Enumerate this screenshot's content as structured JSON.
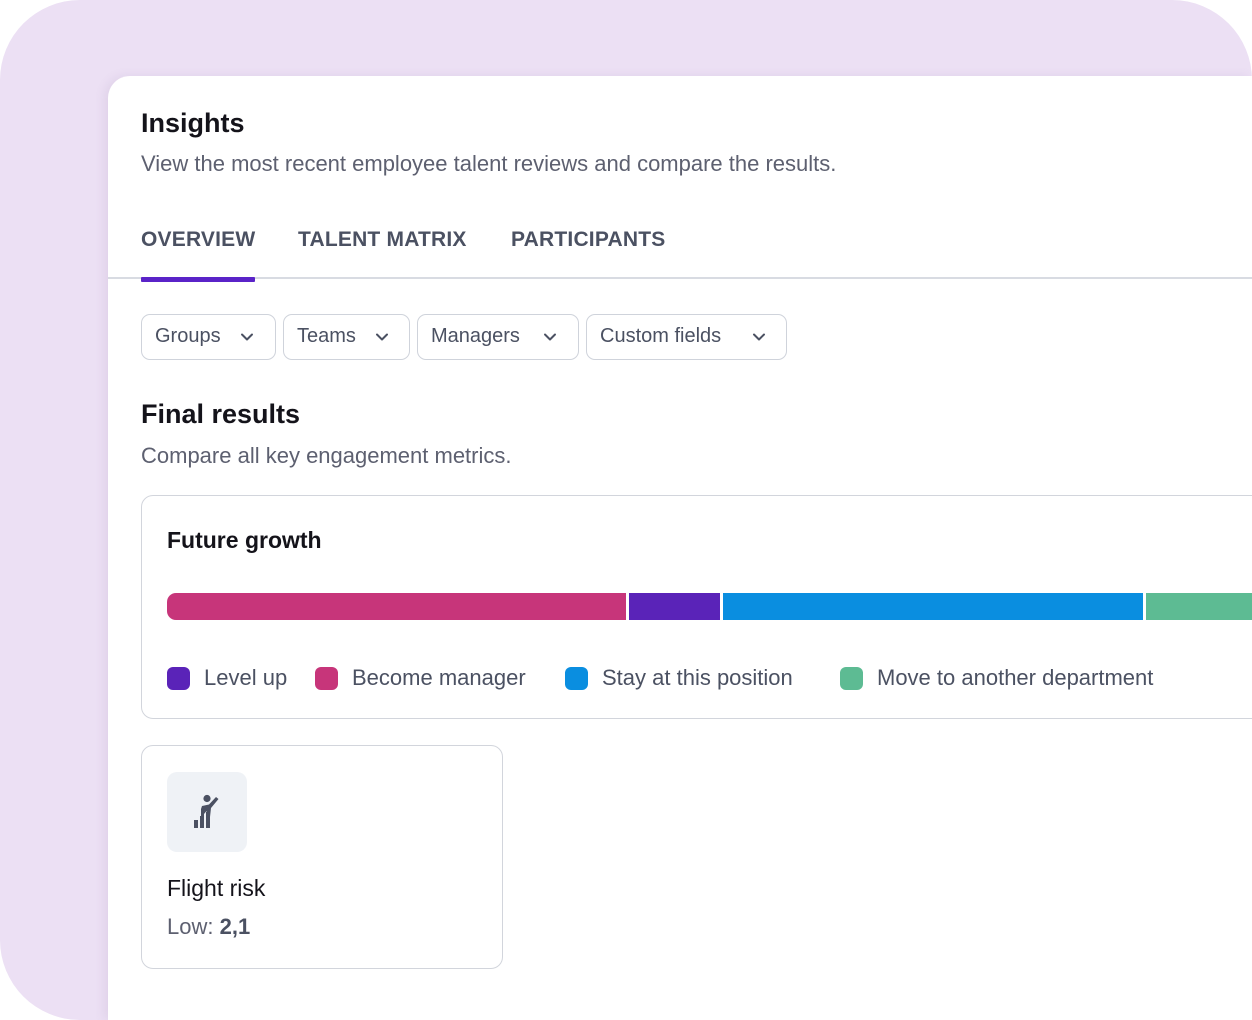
{
  "header": {
    "title": "Insights",
    "subtitle": "View the most recent employee talent reviews and compare the results."
  },
  "tabs": [
    {
      "label": "OVERVIEW",
      "active": true
    },
    {
      "label": "TALENT MATRIX",
      "active": false
    },
    {
      "label": "PARTICIPANTS",
      "active": false
    }
  ],
  "filters": [
    {
      "label": "Groups"
    },
    {
      "label": "Teams"
    },
    {
      "label": "Managers"
    },
    {
      "label": "Custom fields"
    }
  ],
  "final_results": {
    "title": "Final results",
    "subtitle": "Compare all key engagement metrics."
  },
  "future_growth": {
    "title": "Future growth",
    "colors": {
      "level_up": "#5a23b8",
      "become_manager": "#c7357a",
      "stay": "#0a8ee0",
      "move": "#5dbb93"
    },
    "legend": [
      {
        "key": "level_up",
        "label": "Level up"
      },
      {
        "key": "become_manager",
        "label": "Become manager"
      },
      {
        "key": "stay",
        "label": "Stay at this position"
      },
      {
        "key": "move",
        "label": "Move to another department"
      }
    ]
  },
  "chart_data": {
    "type": "bar",
    "stacked": true,
    "orientation": "horizontal",
    "title": "Future growth",
    "categories": [
      "Future growth"
    ],
    "series": [
      {
        "name": "Become manager",
        "values": [
          42
        ]
      },
      {
        "name": "Level up",
        "values": [
          8.5
        ]
      },
      {
        "name": "Stay at this position",
        "values": [
          38.5
        ]
      },
      {
        "name": "Move to another department",
        "values": [
          11
        ]
      }
    ],
    "legend_position": "bottom",
    "grid": false
  },
  "flight_risk": {
    "title": "Flight risk",
    "value_label": "Low:",
    "value": "2,1",
    "icon": "person-climbing-icon"
  }
}
